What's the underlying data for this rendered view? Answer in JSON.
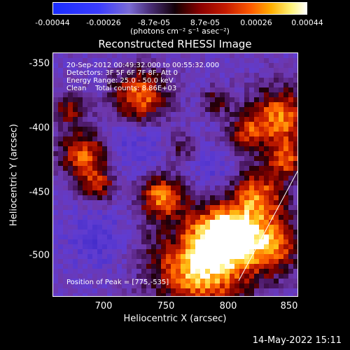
{
  "colorbar": {
    "ticks": [
      "-0.00044",
      "-0.00026",
      "-8.7e-05",
      "8.7e-05",
      "0.00026",
      "0.00044"
    ],
    "unit": "(photons cm⁻² s⁻¹ asec⁻²)"
  },
  "title": "Reconstructed RHESSI Image",
  "annotations": {
    "time": "20-Sep-2012 00:49:32.000 to 00:55:32.000",
    "detectors": "Detectors: 3F 5F 6F 7F 8F, Att 0",
    "energy": "Energy Range: 25.0 - 50.0 keV",
    "clean": "Clean    Total counts: 8.86E+03",
    "peak": "Position of Peak = [775,-535]"
  },
  "axes": {
    "xlabel": "Heliocentric X (arcsec)",
    "ylabel": "Heliocentric Y (arcsec)",
    "xticks": [
      "700",
      "750",
      "800",
      "850"
    ],
    "yticks": [
      "-350",
      "-400",
      "-450",
      "-500"
    ]
  },
  "timestamp": "14-May-2022 15:11",
  "colors": {
    "background": "#000000",
    "text": "#ffffff"
  }
}
